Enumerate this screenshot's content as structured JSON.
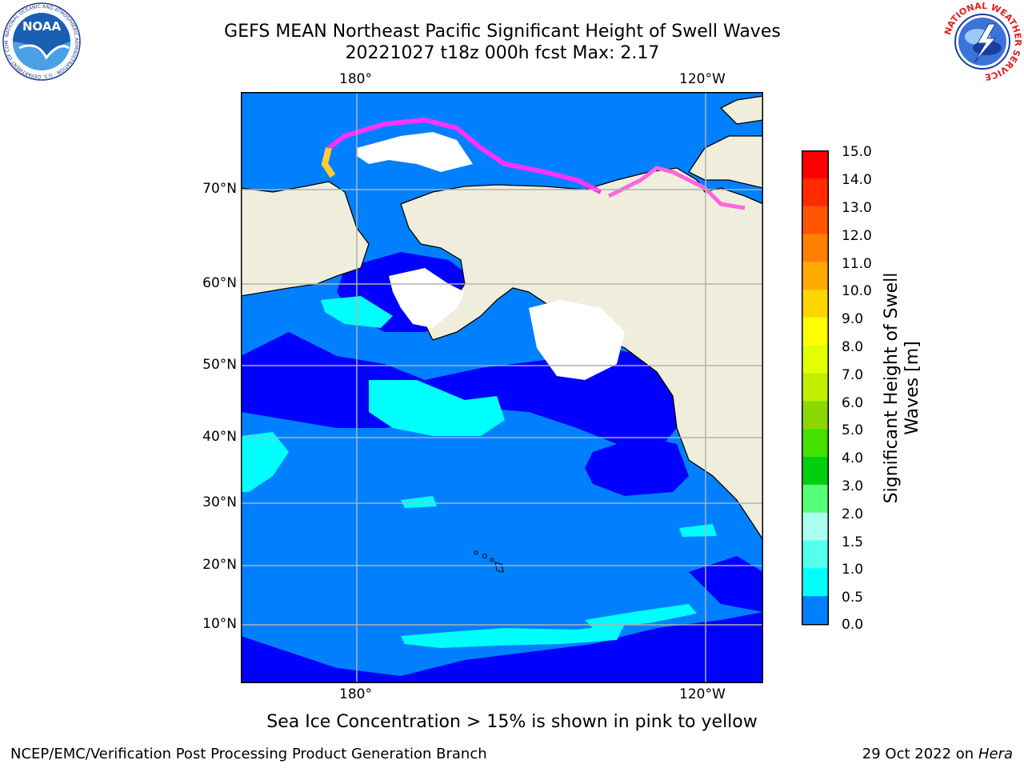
{
  "title": {
    "line1": "GEFS MEAN Northeast Pacific Significant Height of Swell Waves",
    "line2": "20221027 t18z 000h fcst   Max: 2.17"
  },
  "map": {
    "lon_labels_top": [
      "180°",
      "120°W"
    ],
    "lon_labels_bottom": [
      "180°",
      "120°W"
    ],
    "lat_labels": [
      "70°N",
      "60°N",
      "50°N",
      "40°N",
      "30°N",
      "20°N",
      "10°N"
    ],
    "land_color": "#efeedc",
    "ice_color": "#ffffff",
    "sea_ice_colors": [
      "#ff33ff",
      "#ff99cc",
      "#ffcc33"
    ],
    "islands": "Hawaii"
  },
  "colorbar": {
    "title_line1": "Significant Height of Swell",
    "title_line2": "Waves [m]",
    "ticks": [
      "15.0",
      "14.0",
      "13.0",
      "12.0",
      "11.0",
      "10.0",
      "9.0",
      "8.0",
      "7.0",
      "6.0",
      "5.0",
      "4.0",
      "3.0",
      "2.0",
      "1.5",
      "1.0",
      "0.5",
      "0.0"
    ],
    "colors": [
      "#ff0000",
      "#ff2a00",
      "#ff5500",
      "#ff8000",
      "#ffaa00",
      "#ffd500",
      "#ffff00",
      "#e0ff00",
      "#c0f000",
      "#8ad800",
      "#44e000",
      "#00d010",
      "#55ff77",
      "#aaffee",
      "#55ffee",
      "#00ffff",
      "#0080ff",
      "#0000ff"
    ]
  },
  "logos": {
    "left": "NOAA",
    "left_ring": "NATIONAL OCEANIC AND ATMOSPHERIC ADMINISTRATION · U.S. DEPARTMENT OF COMMERCE",
    "right_ring": "NATIONAL WEATHER SERVICE"
  },
  "caption": "Sea Ice Concentration > 15% is shown in pink to yellow",
  "footer": {
    "left": "NCEP/EMC/Verification Post Processing Product Generation Branch",
    "right_prefix": "29 Oct 2022 on ",
    "right_host": "Hera"
  }
}
